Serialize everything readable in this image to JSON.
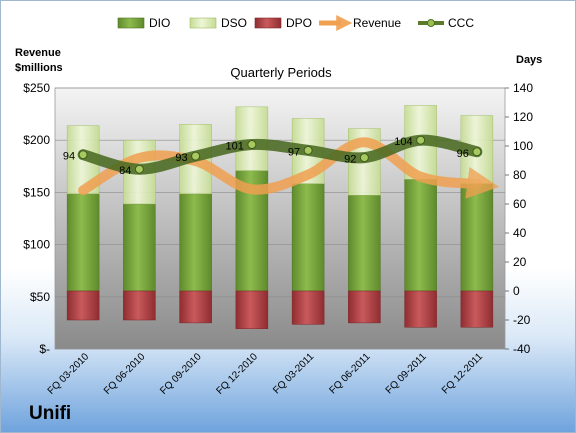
{
  "company": "Unifi",
  "chart_data": {
    "type": "bar",
    "title": "Quarterly Periods",
    "ylabel_left": "Revenue\n$millions",
    "ylabel_right": "Days",
    "categories": [
      "FQ 03-2010",
      "FQ 06-2010",
      "FQ 09-2010",
      "FQ 12-2010",
      "FQ 03-2011",
      "FQ 06-2011",
      "FQ 09-2011",
      "FQ 12-2011"
    ],
    "left_axis": {
      "ylim": [
        0,
        250
      ],
      "ticks": [
        0,
        50,
        100,
        150,
        200,
        250
      ],
      "tick_labels": [
        "$-",
        "$50",
        "$100",
        "$150",
        "$200",
        "$250"
      ]
    },
    "right_axis": {
      "ylim": [
        -40,
        140
      ],
      "ticks": [
        -40,
        -20,
        0,
        20,
        40,
        60,
        80,
        100,
        120,
        140
      ]
    },
    "legend_position": "top",
    "series": [
      {
        "name": "DIO",
        "kind": "bar",
        "axis": "right",
        "color": "#7aa83f",
        "values": [
          67,
          60,
          67,
          83,
          74,
          66,
          77,
          74
        ]
      },
      {
        "name": "DSO",
        "kind": "bar",
        "axis": "right",
        "color": "#d9eab2",
        "values": [
          47,
          44,
          48,
          44,
          45,
          46,
          51,
          47
        ]
      },
      {
        "name": "DPO",
        "kind": "bar",
        "axis": "right",
        "color": "#b8474a",
        "values": [
          -20,
          -20,
          -22,
          -26,
          -23,
          -22,
          -25,
          -25
        ]
      },
      {
        "name": "Revenue",
        "kind": "line",
        "axis": "left",
        "color": "#f0a050",
        "values": [
          152,
          183,
          180,
          153,
          167,
          198,
          165,
          158
        ]
      },
      {
        "name": "CCC",
        "kind": "line",
        "axis": "right",
        "color": "#5b7a2a",
        "values": [
          94,
          84,
          93,
          101,
          97,
          92,
          104,
          96
        ]
      }
    ],
    "ccc_labels": [
      "94",
      "84",
      "93",
      "101",
      "97",
      "92",
      "104",
      "96"
    ]
  }
}
